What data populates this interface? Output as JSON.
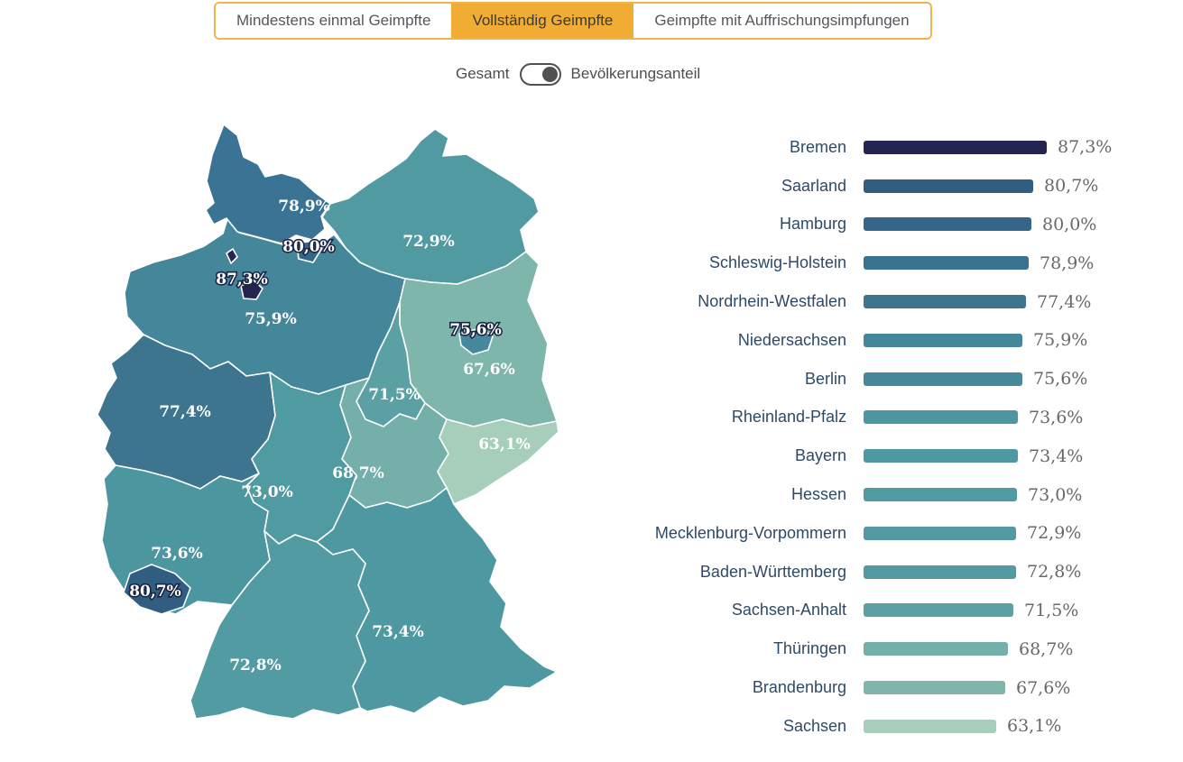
{
  "tabs": {
    "items": [
      {
        "label": "Mindestens einmal Geimpfte",
        "active": false
      },
      {
        "label": "Vollständig Geimpfte",
        "active": true
      },
      {
        "label": "Geimpfte mit Auffrischungsimpfungen",
        "active": false
      }
    ]
  },
  "toggle": {
    "left_label": "Gesamt",
    "right_label": "Bevölkerungsanteil",
    "state": "right"
  },
  "chart_data": {
    "type": "bar",
    "orientation": "horizontal",
    "unit": "%",
    "xlim": [
      0,
      90
    ],
    "categories": [
      "Bremen",
      "Saarland",
      "Hamburg",
      "Schleswig-Holstein",
      "Nordrhein-Westfalen",
      "Niedersachsen",
      "Berlin",
      "Rheinland-Pfalz",
      "Bayern",
      "Hessen",
      "Mecklenburg-Vorpommern",
      "Baden-Württemberg",
      "Sachsen-Anhalt",
      "Thüringen",
      "Brandenburg",
      "Sachsen"
    ],
    "values": [
      87.3,
      80.7,
      80.0,
      78.9,
      77.4,
      75.9,
      75.6,
      73.6,
      73.4,
      73.0,
      72.9,
      72.8,
      71.5,
      68.7,
      67.6,
      63.1
    ],
    "value_labels": [
      "87,3%",
      "80,7%",
      "80,0%",
      "78,9%",
      "77,4%",
      "75,9%",
      "75,6%",
      "73,6%",
      "73,4%",
      "73,0%",
      "72,9%",
      "72,8%",
      "71,5%",
      "68,7%",
      "67,6%",
      "63,1%"
    ],
    "colors": [
      "#242451",
      "#315e80",
      "#346688",
      "#3a7292",
      "#3d758f",
      "#44879b",
      "#46899c",
      "#4c96a0",
      "#4e98a1",
      "#509aa1",
      "#519aa2",
      "#529ba2",
      "#5ba1a4",
      "#74b0a9",
      "#7eb6ac",
      "#a6cebb"
    ]
  },
  "map": {
    "states": [
      {
        "id": "nds",
        "name": "Niedersachsen",
        "label": "75,9%",
        "value": 75.9,
        "color": "#44879b",
        "halo": false
      },
      {
        "id": "sh",
        "name": "Schleswig-Holstein",
        "label": "78,9%",
        "value": 78.9,
        "color": "#3b7394",
        "halo": false
      },
      {
        "id": "mv",
        "name": "Mecklenburg-Vorpommern",
        "label": "72,9%",
        "value": 72.9,
        "color": "#519aa2",
        "halo": false
      },
      {
        "id": "bb",
        "name": "Brandenburg",
        "label": "67,6%",
        "value": 67.6,
        "color": "#7eb6ac",
        "halo": false
      },
      {
        "id": "st",
        "name": "Sachsen-Anhalt",
        "label": "71,5%",
        "value": 71.5,
        "color": "#5ba1a4",
        "halo": false
      },
      {
        "id": "nrw",
        "name": "Nordrhein-Westfalen",
        "label": "77,4%",
        "value": 77.4,
        "color": "#3d758f",
        "halo": false
      },
      {
        "id": "he",
        "name": "Hessen",
        "label": "73,0%",
        "value": 73.0,
        "color": "#509aa1",
        "halo": false
      },
      {
        "id": "th",
        "name": "Thüringen",
        "label": "68,7%",
        "value": 68.7,
        "color": "#74b0a9",
        "halo": false
      },
      {
        "id": "sn",
        "name": "Sachsen",
        "label": "63,1%",
        "value": 63.1,
        "color": "#a6cebb",
        "halo": false
      },
      {
        "id": "rlp",
        "name": "Rheinland-Pfalz",
        "label": "73,6%",
        "value": 73.6,
        "color": "#4c96a0",
        "halo": false
      },
      {
        "id": "by",
        "name": "Bayern",
        "label": "73,4%",
        "value": 73.4,
        "color": "#4e98a1",
        "halo": false
      },
      {
        "id": "bw",
        "name": "Baden-Württemberg",
        "label": "72,8%",
        "value": 72.8,
        "color": "#529ba2",
        "halo": false
      },
      {
        "id": "sl",
        "name": "Saarland",
        "label": "80,7%",
        "value": 80.7,
        "color": "#315e80",
        "halo": true
      },
      {
        "id": "hh",
        "name": "Hamburg",
        "label": "80,0%",
        "value": 80.0,
        "color": "#346688",
        "halo": true
      },
      {
        "id": "hb",
        "name": "Bremen",
        "label": "87,3%",
        "value": 87.3,
        "color": "#242451",
        "halo": true
      },
      {
        "id": "be",
        "name": "Berlin",
        "label": "75,6%",
        "value": 75.6,
        "color": "#46899c",
        "halo": true
      }
    ]
  },
  "ui_colors": {
    "accent_orange": "#f1ad33",
    "tab_border": "#f2b24c",
    "bar_value_text": "#686868",
    "state_name_text": "#2e4a66"
  }
}
